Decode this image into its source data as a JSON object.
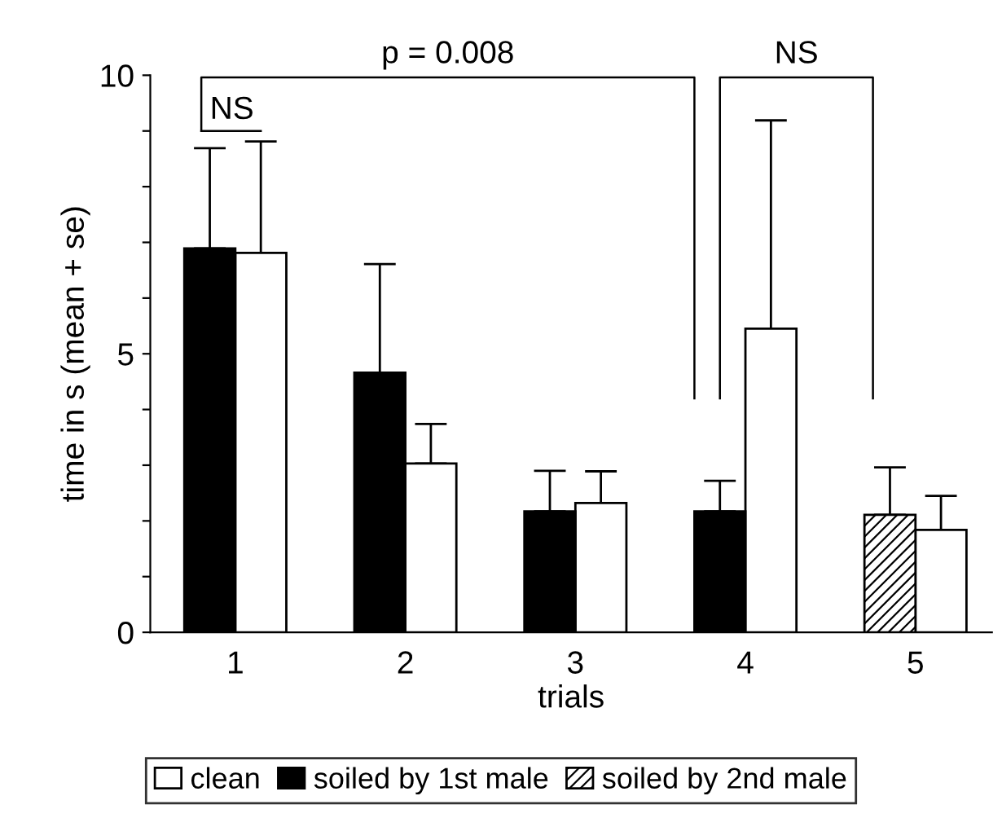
{
  "chart_data": {
    "type": "bar",
    "xlabel": "trials",
    "ylabel": "time in s (mean + se)",
    "categories": [
      "1",
      "2",
      "3",
      "4",
      "5"
    ],
    "series": [
      {
        "name": "clean",
        "color": "#ffffff",
        "values": [
          6.81,
          3.03,
          2.32,
          5.45,
          1.84
        ],
        "errors": [
          [
            6.81,
            8.81
          ],
          [
            3.03,
            3.74
          ],
          [
            2.32,
            2.89
          ],
          [
            5.45,
            9.19
          ],
          [
            1.84,
            2.45
          ]
        ]
      },
      {
        "name": "soiled by 1st male",
        "color": "#000000",
        "values": [
          6.89,
          4.66,
          2.17,
          2.17,
          null
        ],
        "errors": [
          [
            6.89,
            8.69
          ],
          [
            4.66,
            6.61
          ],
          [
            2.17,
            2.9
          ],
          [
            2.17,
            2.72
          ],
          null
        ]
      },
      {
        "name": "soiled by 2nd male",
        "color": "#000000",
        "values": [
          null,
          null,
          null,
          null,
          2.11
        ],
        "errors": [
          null,
          null,
          null,
          null,
          [
            2.11,
            2.96
          ]
        ]
      }
    ],
    "ylim": [
      0,
      10
    ],
    "yticks": [
      0,
      {
        "value": 1,
        "label": null
      },
      {
        "value": 2,
        "label": null
      },
      {
        "value": 3,
        "label": null
      },
      {
        "value": 4,
        "label": null
      },
      5,
      {
        "value": 6,
        "label": null
      },
      {
        "value": 7,
        "label": null
      },
      {
        "value": 8,
        "label": null
      },
      {
        "value": 9,
        "label": null
      },
      10
    ],
    "annotations": [
      "NS",
      "p = 0.008",
      "NS"
    ],
    "legend": "bottom",
    "grid": false
  }
}
